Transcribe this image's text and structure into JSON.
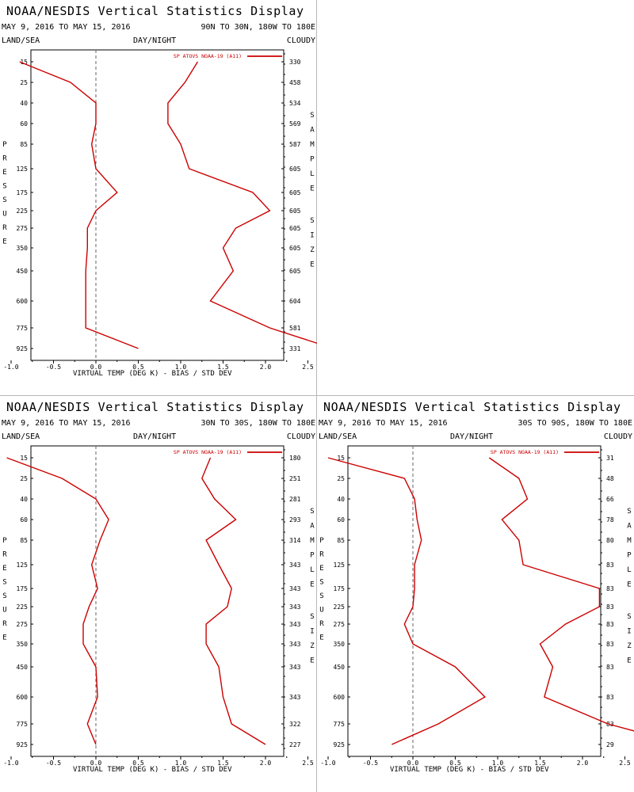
{
  "panels": [
    {
      "title": "NOAA/NESDIS Vertical Statistics Display",
      "dates": "MAY 9, 2016 TO MAY 15, 2016",
      "region": "90N TO 30N, 180W TO 180E",
      "land_sea": "LAND/SEA",
      "day_night": "DAY/NIGHT",
      "cloudy": "CLOUDY",
      "ylabel": "PRESSURE",
      "ylabel_right": "SAMPLE SIZE",
      "xlabel": "VIRTUAL TEMP (DEG K) - BIAS / STD DEV",
      "legend": "SP ATOVS NOAA-19 (A11)"
    },
    {
      "title": "NOAA/NESDIS Vertical Statistics Display",
      "dates": "MAY 9, 2016 TO MAY 15, 2016",
      "region": "30N TO 30S, 180W TO 180E",
      "land_sea": "LAND/SEA",
      "day_night": "DAY/NIGHT",
      "cloudy": "CLOUDY",
      "ylabel": "PRESSURE",
      "ylabel_right": "SAMPLE SIZE",
      "xlabel": "VIRTUAL TEMP (DEG K) - BIAS / STD DEV",
      "legend": "SP ATOVS NOAA-19 (A11)"
    },
    {
      "title": "NOAA/NESDIS Vertical Statistics Display",
      "dates": "MAY 9, 2016 TO MAY 15, 2016",
      "region": "30S TO 90S, 180W TO 180E",
      "land_sea": "LAND/SEA",
      "day_night": "DAY/NIGHT",
      "cloudy": "CLOUDY",
      "ylabel": "PRESSURE",
      "ylabel_right": "SAMPLE SIZE",
      "xlabel": "VIRTUAL TEMP (DEG K) - BIAS / STD DEV",
      "legend": "SP ATOVS NOAA-19 (A11)"
    }
  ],
  "chart_data": [
    {
      "type": "line",
      "pressure_levels": [
        "15",
        "25",
        "40",
        "60",
        "85",
        "125",
        "175",
        "225",
        "275",
        "350",
        "450",
        "600",
        "775",
        "925"
      ],
      "x_ticks": [
        "-1.0",
        "-0.5",
        "0.0",
        "0.5",
        "1.0",
        "1.5",
        "2.0",
        "2.5",
        "3.0",
        "3.5",
        "4.0"
      ],
      "xlim": [
        -1.5,
        4.3
      ],
      "line_color": "#cc0000",
      "series": [
        {
          "name": "bias",
          "values": [
            -0.9,
            -0.3,
            0.0,
            0.0,
            -0.05,
            0.0,
            0.25,
            0.0,
            -0.1,
            -0.1,
            -0.12,
            -0.12,
            -0.12,
            0.5
          ]
        },
        {
          "name": "std dev",
          "values": [
            1.2,
            1.05,
            0.85,
            0.85,
            1.0,
            1.1,
            1.85,
            2.05,
            1.65,
            1.5,
            1.62,
            1.35,
            2.05,
            2.8
          ]
        }
      ],
      "sample_size": [
        "330",
        "458",
        "534",
        "569",
        "587",
        "605",
        "605",
        "605",
        "605",
        "605",
        "605",
        "604",
        "581",
        "331"
      ]
    },
    {
      "type": "line",
      "pressure_levels": [
        "15",
        "25",
        "40",
        "60",
        "85",
        "125",
        "175",
        "225",
        "275",
        "350",
        "450",
        "600",
        "775",
        "925"
      ],
      "x_ticks": [
        "-1.0",
        "-0.5",
        "0.0",
        "0.5",
        "1.0",
        "1.5",
        "2.0",
        "2.5",
        "3.0",
        "3.5",
        "4.0"
      ],
      "xlim": [
        -1.5,
        4.3
      ],
      "line_color": "#cc0000",
      "series": [
        {
          "name": "bias",
          "values": [
            -1.05,
            -0.4,
            0.0,
            0.15,
            0.05,
            -0.05,
            0.02,
            -0.08,
            -0.15,
            -0.15,
            0.0,
            0.02,
            -0.1,
            0.0
          ]
        },
        {
          "name": "std dev",
          "values": [
            1.35,
            1.25,
            1.4,
            1.65,
            1.3,
            1.45,
            1.6,
            1.55,
            1.3,
            1.3,
            1.45,
            1.5,
            1.6,
            2.0
          ]
        }
      ],
      "sample_size": [
        "180",
        "251",
        "281",
        "293",
        "314",
        "343",
        "343",
        "343",
        "343",
        "343",
        "343",
        "343",
        "322",
        "227"
      ]
    },
    {
      "type": "line",
      "pressure_levels": [
        "15",
        "25",
        "40",
        "60",
        "85",
        "125",
        "175",
        "225",
        "275",
        "350",
        "450",
        "600",
        "775",
        "925"
      ],
      "x_ticks": [
        "-1.0",
        "-0.5",
        "0.0",
        "0.5",
        "1.0",
        "1.5",
        "2.0",
        "2.5",
        "3.0",
        "3.5",
        "4.0"
      ],
      "xlim": [
        -1.5,
        4.3
      ],
      "line_color": "#cc0000",
      "series": [
        {
          "name": "bias",
          "values": [
            -1.0,
            -0.1,
            0.02,
            0.05,
            0.1,
            0.02,
            0.02,
            0.0,
            -0.1,
            0.0,
            0.5,
            0.85,
            0.3,
            -0.25
          ]
        },
        {
          "name": "std dev",
          "values": [
            0.9,
            1.25,
            1.35,
            1.05,
            1.25,
            1.3,
            2.2,
            2.2,
            1.8,
            1.5,
            1.65,
            1.55,
            2.3,
            3.2
          ]
        }
      ],
      "sample_size": [
        "31",
        "48",
        "66",
        "78",
        "80",
        "83",
        "83",
        "83",
        "83",
        "83",
        "83",
        "83",
        "83",
        "29"
      ]
    }
  ]
}
